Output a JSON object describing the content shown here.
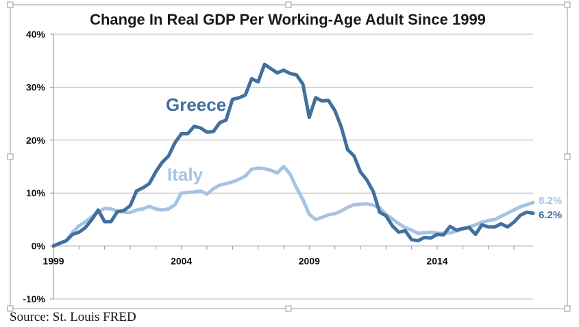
{
  "source": "Source: St. Louis FRED",
  "colors": {
    "greece": "#41709c",
    "italy": "#a6c3e3",
    "grid": "#b5b5b5",
    "frame": "#9a9a9a"
  },
  "chart_data": {
    "type": "line",
    "title": "Change In Real GDP Per Working-Age Adult Since 1999",
    "xlabel": "",
    "ylabel": "",
    "xlim": [
      1999,
      2017.75
    ],
    "ylim": [
      -10,
      40
    ],
    "x_ticks": [
      1999,
      2004,
      2009,
      2014
    ],
    "x_tick_labels": [
      "1999",
      "2004",
      "2009",
      "2014"
    ],
    "y_ticks": [
      -10,
      0,
      10,
      20,
      30,
      40
    ],
    "y_tick_labels": [
      "-10%",
      "0%",
      "10%",
      "20%",
      "30%",
      "40%"
    ],
    "grid": true,
    "legend": "none",
    "series": [
      {
        "name": "Greece",
        "end_label": "6.2%",
        "x": [
          1999,
          1999.25,
          1999.5,
          1999.75,
          2000,
          2000.25,
          2000.5,
          2000.75,
          2001,
          2001.25,
          2001.5,
          2001.75,
          2002,
          2002.25,
          2002.5,
          2002.75,
          2003,
          2003.25,
          2003.5,
          2003.75,
          2004,
          2004.25,
          2004.5,
          2004.75,
          2005,
          2005.25,
          2005.5,
          2005.75,
          2006,
          2006.25,
          2006.5,
          2006.75,
          2007,
          2007.25,
          2007.5,
          2007.75,
          2008,
          2008.25,
          2008.5,
          2008.75,
          2009,
          2009.25,
          2009.5,
          2009.75,
          2010,
          2010.25,
          2010.5,
          2010.75,
          2011,
          2011.25,
          2011.5,
          2011.75,
          2012,
          2012.25,
          2012.5,
          2012.75,
          2013,
          2013.25,
          2013.5,
          2013.75,
          2014,
          2014.25,
          2014.5,
          2014.75,
          2015,
          2015.25,
          2015.5,
          2015.75,
          2016,
          2016.25,
          2016.5,
          2016.75,
          2017,
          2017.25,
          2017.5,
          2017.75
        ],
        "values": [
          0.0,
          0.5,
          1.0,
          2.2,
          2.6,
          3.5,
          5.0,
          6.8,
          4.6,
          4.6,
          6.5,
          6.7,
          7.6,
          10.4,
          11.0,
          11.8,
          14.0,
          15.8,
          17.0,
          19.5,
          21.2,
          21.2,
          22.6,
          22.3,
          21.5,
          21.6,
          23.3,
          23.8,
          27.7,
          28.0,
          28.5,
          31.6,
          31.0,
          34.3,
          33.5,
          32.7,
          33.2,
          32.6,
          32.3,
          30.6,
          24.3,
          28.0,
          27.4,
          27.5,
          25.6,
          22.5,
          18.2,
          17.0,
          14.0,
          12.5,
          10.3,
          6.4,
          5.7,
          3.8,
          2.6,
          2.9,
          1.2,
          1.0,
          1.6,
          1.5,
          2.2,
          2.1,
          3.7,
          3.0,
          3.3,
          3.5,
          2.2,
          4.0,
          3.6,
          3.6,
          4.2,
          3.6,
          4.5,
          5.8,
          6.4,
          6.2
        ]
      },
      {
        "name": "Italy",
        "end_label": "8.2%",
        "x": [
          1999,
          1999.25,
          1999.5,
          1999.75,
          2000,
          2000.25,
          2000.5,
          2000.75,
          2001,
          2001.25,
          2001.5,
          2001.75,
          2002,
          2002.25,
          2002.5,
          2002.75,
          2003,
          2003.25,
          2003.5,
          2003.75,
          2004,
          2004.25,
          2004.5,
          2004.75,
          2005,
          2005.25,
          2005.5,
          2005.75,
          2006,
          2006.25,
          2006.5,
          2006.75,
          2007,
          2007.25,
          2007.5,
          2007.75,
          2008,
          2008.25,
          2008.5,
          2008.75,
          2009,
          2009.25,
          2009.5,
          2009.75,
          2010,
          2010.25,
          2010.5,
          2010.75,
          2011,
          2011.25,
          2011.5,
          2011.75,
          2012,
          2012.25,
          2012.5,
          2012.75,
          2013,
          2013.25,
          2013.5,
          2013.75,
          2014,
          2014.25,
          2014.5,
          2014.75,
          2015,
          2015.25,
          2015.5,
          2015.75,
          2016,
          2016.25,
          2016.5,
          2016.75,
          2017,
          2017.25,
          2017.5,
          2017.75
        ],
        "values": [
          0.0,
          0.6,
          1.0,
          2.6,
          3.8,
          4.6,
          5.5,
          6.4,
          7.1,
          7.0,
          6.6,
          6.4,
          6.3,
          6.8,
          7.0,
          7.5,
          7.0,
          6.8,
          7.0,
          7.8,
          10.0,
          10.1,
          10.2,
          10.4,
          9.8,
          10.8,
          11.5,
          11.8,
          12.1,
          12.6,
          13.2,
          14.5,
          14.7,
          14.6,
          14.3,
          13.8,
          15.0,
          13.6,
          11.0,
          8.8,
          6.0,
          5.0,
          5.4,
          5.9,
          6.1,
          6.6,
          7.3,
          7.8,
          7.9,
          8.0,
          7.7,
          7.2,
          6.0,
          5.1,
          4.2,
          3.5,
          3.0,
          2.4,
          2.5,
          2.6,
          2.4,
          2.4,
          2.5,
          2.8,
          3.2,
          3.6,
          4.0,
          4.5,
          4.8,
          5.0,
          5.6,
          6.2,
          6.8,
          7.4,
          7.8,
          8.2
        ]
      }
    ],
    "annotations": [
      "Greece",
      "Italy"
    ]
  }
}
